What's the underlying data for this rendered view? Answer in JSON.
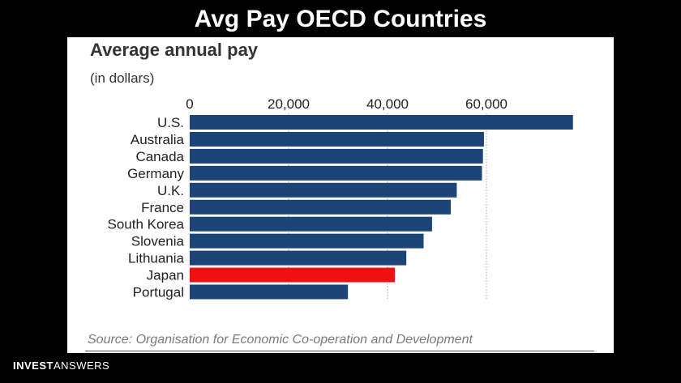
{
  "slide": {
    "title": "Avg Pay OECD Countries"
  },
  "brand": {
    "part1": "INVEST",
    "part2": "ANSWERS"
  },
  "chart_data": {
    "type": "bar",
    "orientation": "horizontal",
    "title": "Average annual pay",
    "subtitle": "(in dollars)",
    "source": "Source: Organisation for Economic Co-operation and Development",
    "categories": [
      "U.S.",
      "Australia",
      "Canada",
      "Germany",
      "U.K.",
      "France",
      "South Korea",
      "Slovenia",
      "Lithuania",
      "Japan",
      "Portugal"
    ],
    "values": [
      77500,
      59500,
      59300,
      59100,
      54000,
      52800,
      49000,
      47300,
      43800,
      41500,
      32000
    ],
    "highlight": "Japan",
    "colors": {
      "bar": "#1c4477",
      "highlight": "#ee1111",
      "grid": "#a8a8a8",
      "text": "#222222"
    },
    "xticks": [
      0,
      20000,
      40000,
      60000
    ],
    "xtick_labels": [
      "0",
      "20,000",
      "40,000",
      "60,000"
    ],
    "xlim": [
      0,
      80000
    ],
    "xaxis_position": "top",
    "grid": true,
    "legend": "none"
  }
}
